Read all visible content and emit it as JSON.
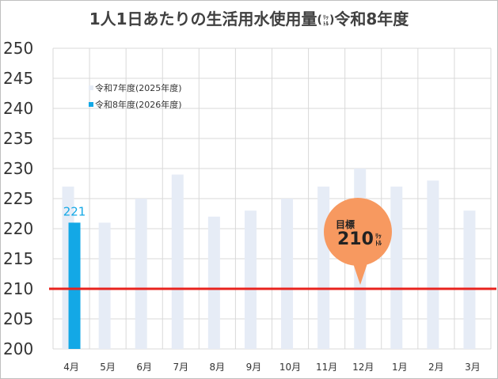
{
  "chart_data": {
    "type": "bar",
    "title": "1人1日あたりの生活用水使用量",
    "title_unit_top": "ﾘｯ",
    "title_unit_bottom": "ﾄﾙ",
    "title_suffix": "令和8年度",
    "categories": [
      "4月",
      "5月",
      "6月",
      "7月",
      "8月",
      "9月",
      "10月",
      "11月",
      "12月",
      "1月",
      "2月",
      "3月"
    ],
    "ylim": [
      200,
      250
    ],
    "yticks": [
      200,
      205,
      210,
      215,
      220,
      225,
      230,
      235,
      240,
      245,
      250
    ],
    "grid": true,
    "legend_position": "top-left",
    "series": [
      {
        "name": "令和7年度(2025年度)",
        "color": "#e6ecf6",
        "values": [
          227,
          221,
          225,
          229,
          222,
          223,
          225,
          227,
          230,
          227,
          228,
          223
        ]
      },
      {
        "name": "令和8年度(2026年度)",
        "color": "#13a8e6",
        "values": [
          221,
          null,
          null,
          null,
          null,
          null,
          null,
          null,
          null,
          null,
          null,
          null
        ]
      }
    ],
    "data_labels": [
      {
        "series": 1,
        "index": 0,
        "text": "221"
      }
    ],
    "target": {
      "value": 210,
      "color": "#e8231e",
      "label": "目標",
      "value_text": "210",
      "unit_top": "ﾘｯ",
      "unit_bottom": "ﾄﾙ",
      "bubble_color": "#f79960"
    }
  }
}
